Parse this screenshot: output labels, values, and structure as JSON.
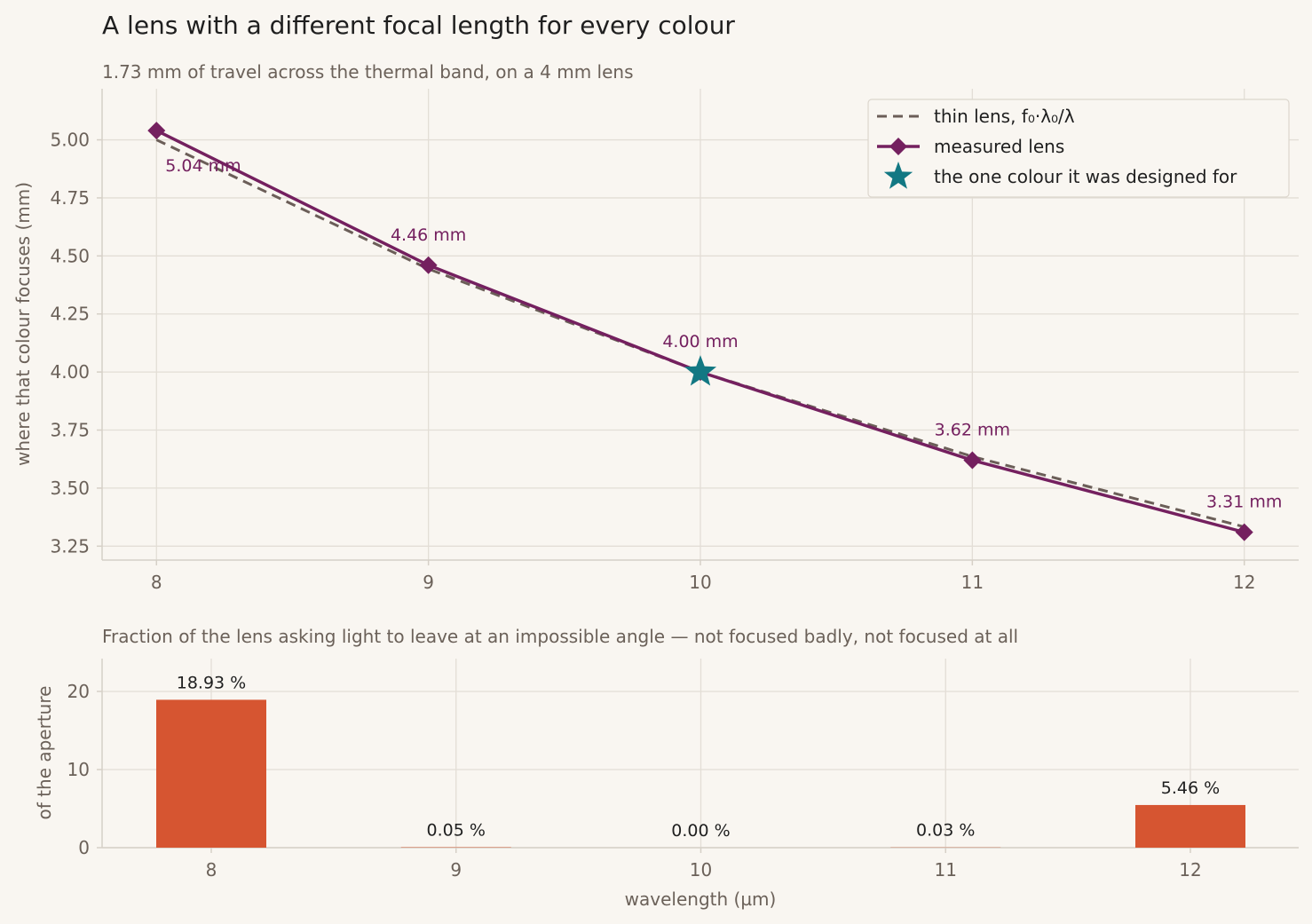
{
  "title": "A lens with a different focal length for every colour",
  "subtitle": "1.73 mm of travel across the thermal band, on a 4 mm lens",
  "chart_data": [
    {
      "type": "line",
      "ylabel": "where that colour focuses  (mm)",
      "xlim": [
        7.8,
        12.2
      ],
      "ylim": [
        3.19,
        5.22
      ],
      "xticks": [
        "8",
        "9",
        "10",
        "11",
        "12"
      ],
      "yticks": [
        "3.25",
        "3.50",
        "3.75",
        "4.00",
        "4.25",
        "4.50",
        "4.75",
        "5.00"
      ],
      "grid": true,
      "legend_position": "top-right",
      "colors": {
        "measured": "#74205f",
        "thin_lens": "#6b5e58",
        "design": "#127883"
      },
      "series": [
        {
          "name": "thin lens, f₀·λ₀/λ",
          "style": "dashed",
          "x": [
            8,
            9,
            10,
            11,
            12
          ],
          "y": [
            5.0,
            4.444,
            4.0,
            3.636,
            3.333
          ]
        },
        {
          "name": "measured lens",
          "style": "solid-diamond",
          "x": [
            8,
            9,
            10,
            11,
            12
          ],
          "y": [
            5.04,
            4.46,
            4.0,
            3.62,
            3.31
          ],
          "labels": [
            "5.04 mm",
            "4.46 mm",
            "4.00 mm",
            "3.62 mm",
            "3.31 mm"
          ]
        },
        {
          "name": "the one colour it was designed for",
          "style": "star",
          "x": [
            10
          ],
          "y": [
            4.0
          ]
        }
      ]
    },
    {
      "type": "bar",
      "title": "Fraction of the lens asking light to leave at an impossible angle — not focused badly, not focused at all",
      "xlabel": "wavelength  (µm)",
      "ylabel": "of the aperture",
      "categories": [
        "8",
        "9",
        "10",
        "11",
        "12"
      ],
      "values": [
        18.93,
        0.05,
        0.0,
        0.03,
        5.46
      ],
      "labels": [
        "18.93 %",
        "0.05 %",
        "0.00 %",
        "0.03 %",
        "5.46 %"
      ],
      "ylim": [
        0,
        24.2
      ],
      "yticks": [
        "0",
        "10",
        "20"
      ],
      "grid": true,
      "color": "#d65531"
    }
  ]
}
